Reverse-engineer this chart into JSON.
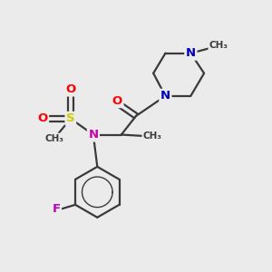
{
  "bg_color": "#ebebeb",
  "bond_color": "#3a3a3a",
  "bond_width": 1.6,
  "atom_colors": {
    "N_pip": "#0000bb",
    "N_sul": "#cc00aa",
    "O": "#ff0000",
    "S": "#cccc00",
    "F": "#bb00bb",
    "C": "#3a3a3a"
  },
  "font_size": 9.5,
  "xlim": [
    0,
    10
  ],
  "ylim": [
    0,
    10
  ]
}
